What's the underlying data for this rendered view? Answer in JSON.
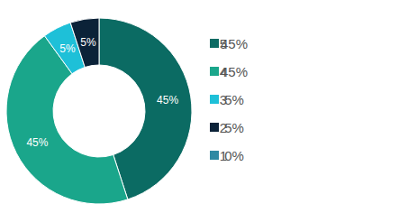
{
  "chart_data": {
    "type": "donut",
    "categories": [
      "5",
      "4",
      "3",
      "2",
      "1"
    ],
    "values": [
      45,
      45,
      5,
      5,
      0
    ],
    "value_labels": [
      "45%",
      "45%",
      "5%",
      "5%",
      "0%"
    ],
    "colors": [
      "#0b6b63",
      "#1aa68b",
      "#1ec0d8",
      "#0b2238",
      "#2e8aa3"
    ],
    "data_labels": true,
    "legend": "right"
  }
}
